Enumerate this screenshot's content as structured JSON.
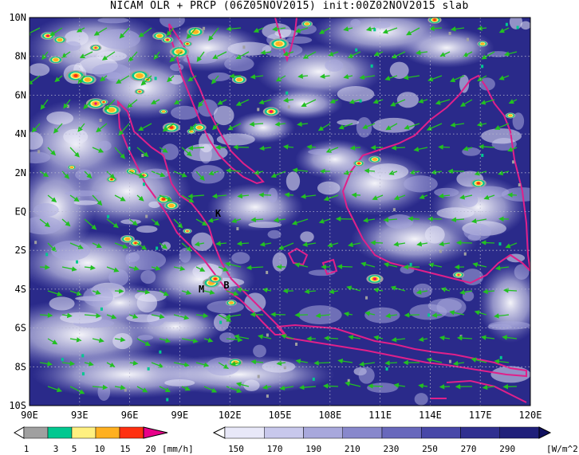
{
  "title": "NICAM OLR + PRCP (06Z05NOV2015) init:00Z02NOV2015 slab",
  "map": {
    "lon_labels": [
      "90E",
      "93E",
      "96E",
      "99E",
      "102E",
      "105E",
      "108E",
      "111E",
      "114E",
      "117E",
      "120E"
    ],
    "lat_labels": [
      "10N",
      "8N",
      "6N",
      "4N",
      "2N",
      "EQ",
      "2S",
      "4S",
      "6S",
      "8S",
      "10S"
    ],
    "markers": [
      {
        "text": "K",
        "lon": 101.3,
        "lat": -0.1
      },
      {
        "text": "M",
        "lon": 100.3,
        "lat": -4.0
      },
      {
        "text": "B",
        "lon": 101.8,
        "lat": -3.8
      }
    ],
    "colors": {
      "ocean_dark": "#20207a",
      "coast": "#e0208a",
      "wind": "#22c022"
    }
  },
  "precip_colorbar": {
    "unit": "[mm/h]",
    "tick_labels": [
      "1",
      "3",
      "5",
      "10",
      "15",
      "20"
    ],
    "colors": [
      "#a0a0a0",
      "#00c890",
      "#fff080",
      "#ffb020",
      "#ff3010",
      "#e8008a"
    ]
  },
  "olr_colorbar": {
    "unit": "[W/m^2]",
    "tick_labels": [
      "150",
      "170",
      "190",
      "210",
      "230",
      "250",
      "270",
      "290"
    ],
    "colors": [
      "#ffffff",
      "#e8e8f8",
      "#c8c8ec",
      "#a8a8dc",
      "#8888cc",
      "#6868bc",
      "#4848a8",
      "#303090",
      "#20207a",
      "#101060"
    ]
  }
}
